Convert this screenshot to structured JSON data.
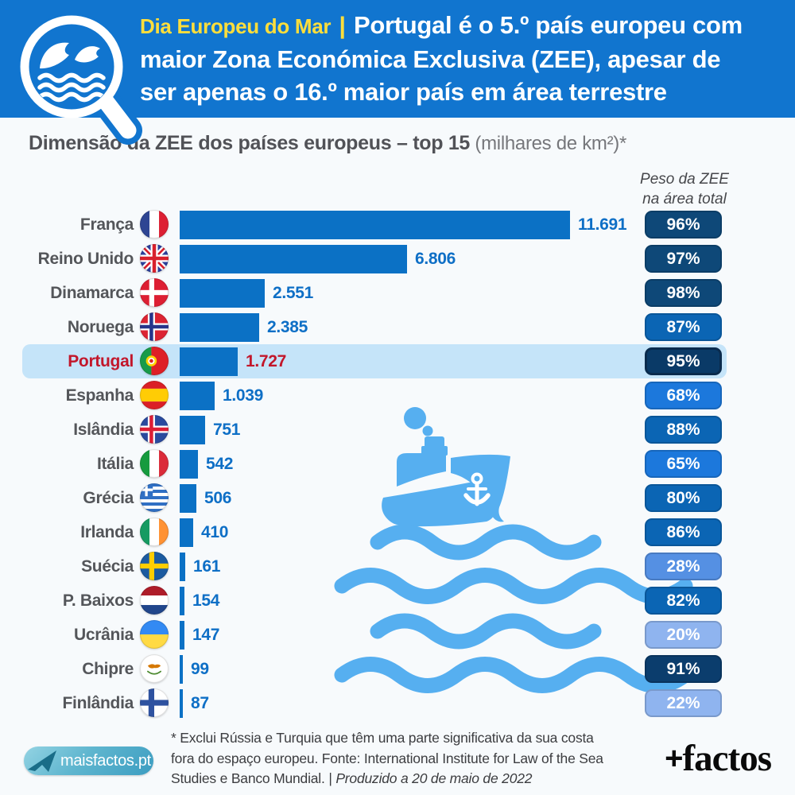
{
  "header": {
    "kicker": "Dia Europeu do Mar",
    "separator": "|",
    "title_lines": [
      "Portugal é o 5.º país europeu com",
      "maior Zona Económica Exclusiva (ZEE), apesar de",
      "ser apenas o 16.º maior país em área terrestre"
    ],
    "bg_color": "#1175CF",
    "kicker_color": "#FFDE3B"
  },
  "chart_title": {
    "bold": "Dimensão da ZEE dos países europeus – top 15",
    "light": " (milhares de km²)*"
  },
  "column_header": {
    "line1": "Peso da ZEE",
    "line2": "na área total"
  },
  "chart_data": {
    "type": "bar",
    "orientation": "horizontal",
    "title": "Dimensão da ZEE dos países europeus – top 15 (milhares de km²)",
    "unit": "milhares de km²",
    "xlim": [
      0,
      12000
    ],
    "max_value": 11691,
    "categories": [
      "França",
      "Reino Unido",
      "Dinamarca",
      "Noruega",
      "Portugal",
      "Espanha",
      "Islândia",
      "Itália",
      "Grécia",
      "Irlanda",
      "Suécia",
      "P. Baixos",
      "Ucrânia",
      "Chipre",
      "Finlândia"
    ],
    "values": [
      11691,
      6806,
      2551,
      2385,
      1727,
      1039,
      751,
      542,
      506,
      410,
      161,
      154,
      147,
      99,
      87
    ],
    "secondary_series": {
      "name": "Peso da ZEE na área total",
      "values_percent": [
        96,
        97,
        98,
        87,
        95,
        68,
        88,
        65,
        80,
        86,
        28,
        82,
        20,
        91,
        22
      ]
    },
    "highlight_category": "Portugal",
    "bar_color": "#0B71C5",
    "highlight_band_color": "#C5E4F9",
    "highlight_text_color": "#C2172B"
  },
  "rows": [
    {
      "country": "França",
      "flag": "france",
      "value": 11691,
      "value_label": "11.691",
      "percent": "96%",
      "badge_color": "#0E4878",
      "highlight": false
    },
    {
      "country": "Reino Unido",
      "flag": "uk",
      "value": 6806,
      "value_label": "6.806",
      "percent": "97%",
      "badge_color": "#0E4878",
      "highlight": false
    },
    {
      "country": "Dinamarca",
      "flag": "denmark",
      "value": 2551,
      "value_label": "2.551",
      "percent": "98%",
      "badge_color": "#0E4878",
      "highlight": false
    },
    {
      "country": "Noruega",
      "flag": "norway",
      "value": 2385,
      "value_label": "2.385",
      "percent": "87%",
      "badge_color": "#0B65B4",
      "highlight": false
    },
    {
      "country": "Portugal",
      "flag": "portugal",
      "value": 1727,
      "value_label": "1.727",
      "percent": "95%",
      "badge_color": "#0A3A67",
      "highlight": true
    },
    {
      "country": "Espanha",
      "flag": "spain",
      "value": 1039,
      "value_label": "1.039",
      "percent": "68%",
      "badge_color": "#1C78DC",
      "highlight": false
    },
    {
      "country": "Islândia",
      "flag": "iceland",
      "value": 751,
      "value_label": "751",
      "percent": "88%",
      "badge_color": "#0B65B4",
      "highlight": false
    },
    {
      "country": "Itália",
      "flag": "italy",
      "value": 542,
      "value_label": "542",
      "percent": "65%",
      "badge_color": "#1C78DC",
      "highlight": false
    },
    {
      "country": "Grécia",
      "flag": "greece",
      "value": 506,
      "value_label": "506",
      "percent": "80%",
      "badge_color": "#0B65B4",
      "highlight": false
    },
    {
      "country": "Irlanda",
      "flag": "ireland",
      "value": 410,
      "value_label": "410",
      "percent": "86%",
      "badge_color": "#0B65B4",
      "highlight": false
    },
    {
      "country": "Suécia",
      "flag": "sweden",
      "value": 161,
      "value_label": "161",
      "percent": "28%",
      "badge_color": "#5590E3",
      "highlight": false
    },
    {
      "country": "P. Baixos",
      "flag": "netherlands",
      "value": 154,
      "value_label": "154",
      "percent": "82%",
      "badge_color": "#0B65B4",
      "highlight": false
    },
    {
      "country": "Ucrânia",
      "flag": "ukraine",
      "value": 147,
      "value_label": "147",
      "percent": "20%",
      "badge_color": "#8FB4EF",
      "highlight": false
    },
    {
      "country": "Chipre",
      "flag": "cyprus",
      "value": 99,
      "value_label": "99",
      "percent": "91%",
      "badge_color": "#0B3D6D",
      "highlight": false
    },
    {
      "country": "Finlândia",
      "flag": "finland",
      "value": 87,
      "value_label": "87",
      "percent": "22%",
      "badge_color": "#8FB4EF",
      "highlight": false
    }
  ],
  "footnote": {
    "line1": "* Exclui Rússia e Turquia que têm uma parte significativa da sua costa",
    "line2": "fora do espaço europeu. Fonte: International Institute for Law of the Sea",
    "line3_normal": "Studies e Banco Mundial. | ",
    "line3_italic": "Produzido a 20 de maio de 2022"
  },
  "branding": {
    "site": "maisfactos.pt",
    "logo_plus": "+",
    "logo_word": "factos"
  },
  "illustration_color": "#56AFF0"
}
